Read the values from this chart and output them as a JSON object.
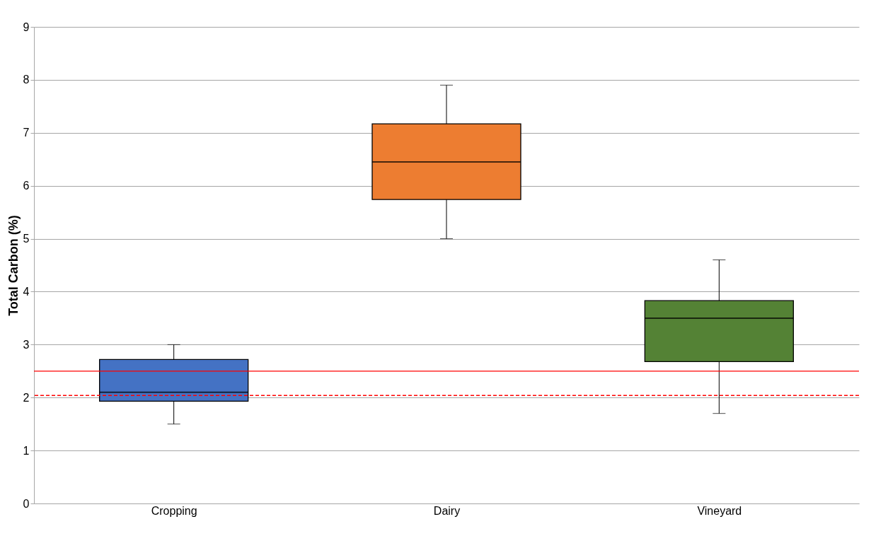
{
  "chart_data": {
    "type": "box",
    "ylabel": "Total Carbon (%)",
    "categories": [
      "Cropping",
      "Dairy",
      "Vineyard"
    ],
    "colors": [
      "#4472c4",
      "#ed7d31",
      "#548235"
    ],
    "boxes": [
      {
        "low": 1.5,
        "q1": 1.93,
        "median": 2.1,
        "q3": 2.72,
        "high": 3.0
      },
      {
        "low": 5.0,
        "q1": 5.74,
        "median": 6.45,
        "q3": 7.17,
        "high": 7.9
      },
      {
        "low": 1.7,
        "q1": 2.68,
        "median": 3.5,
        "q3": 3.83,
        "high": 4.6
      }
    ],
    "ylim": [
      0,
      9
    ],
    "yticks": [
      0,
      1,
      2,
      3,
      4,
      5,
      6,
      7,
      8,
      9
    ],
    "grid": "y",
    "ref_lines": [
      {
        "axis": "y",
        "value": 2.5,
        "color": "#ff0000",
        "line_style": "solid"
      },
      {
        "axis": "y",
        "value": 2.04,
        "color": "#ff0000",
        "line_style": "dashed"
      }
    ]
  }
}
